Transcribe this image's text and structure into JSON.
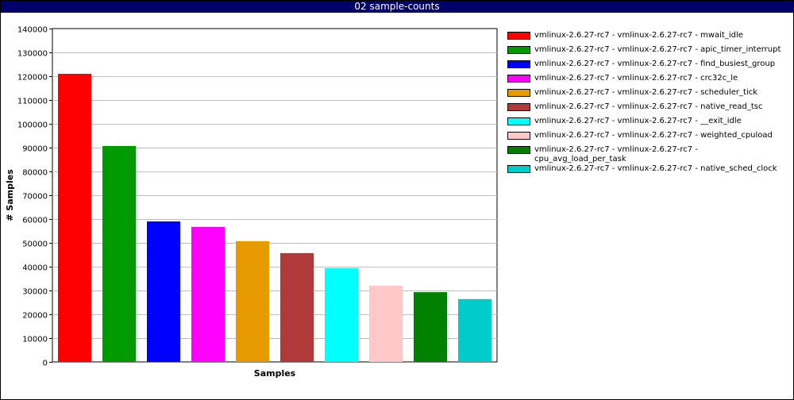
{
  "window": {
    "title": "02 sample-counts"
  },
  "chart_data": {
    "type": "bar",
    "xlabel": "Samples",
    "ylabel": "# Samples",
    "ylim": [
      0,
      140000
    ],
    "yticks": [
      0,
      10000,
      20000,
      30000,
      40000,
      50000,
      60000,
      70000,
      80000,
      90000,
      100000,
      110000,
      120000,
      130000,
      140000
    ],
    "grid": true,
    "legend_position": "right",
    "series": [
      {
        "name": "vmlinux-2.6.27-rc7 - vmlinux-2.6.27-rc7 - mwait_idle",
        "value": 121000,
        "color": "#ff0000"
      },
      {
        "name": "vmlinux-2.6.27-rc7 - vmlinux-2.6.27-rc7 - apic_timer_interrupt",
        "value": 90700,
        "color": "#009900"
      },
      {
        "name": "vmlinux-2.6.27-rc7 - vmlinux-2.6.27-rc7 - find_busiest_group",
        "value": 59000,
        "color": "#0000ff"
      },
      {
        "name": "vmlinux-2.6.27-rc7 - vmlinux-2.6.27-rc7 - crc32c_le",
        "value": 56700,
        "color": "#ff00ff"
      },
      {
        "name": "vmlinux-2.6.27-rc7 - vmlinux-2.6.27-rc7 - scheduler_tick",
        "value": 50700,
        "color": "#e69900"
      },
      {
        "name": "vmlinux-2.6.27-rc7 - vmlinux-2.6.27-rc7 - native_read_tsc",
        "value": 45700,
        "color": "#b03a3a"
      },
      {
        "name": "vmlinux-2.6.27-rc7 - vmlinux-2.6.27-rc7 - __exit_idle",
        "value": 39400,
        "color": "#00ffff"
      },
      {
        "name": "vmlinux-2.6.27-rc7 - vmlinux-2.6.27-rc7 - weighted_cpuload",
        "value": 32000,
        "color": "#ffc8c8"
      },
      {
        "name": "vmlinux-2.6.27-rc7 - vmlinux-2.6.27-rc7 - cpu_avg_load_per_task",
        "value": 29300,
        "color": "#007f00"
      },
      {
        "name": "vmlinux-2.6.27-rc7 - vmlinux-2.6.27-rc7 - native_sched_clock",
        "value": 26400,
        "color": "#00cccc"
      }
    ]
  }
}
